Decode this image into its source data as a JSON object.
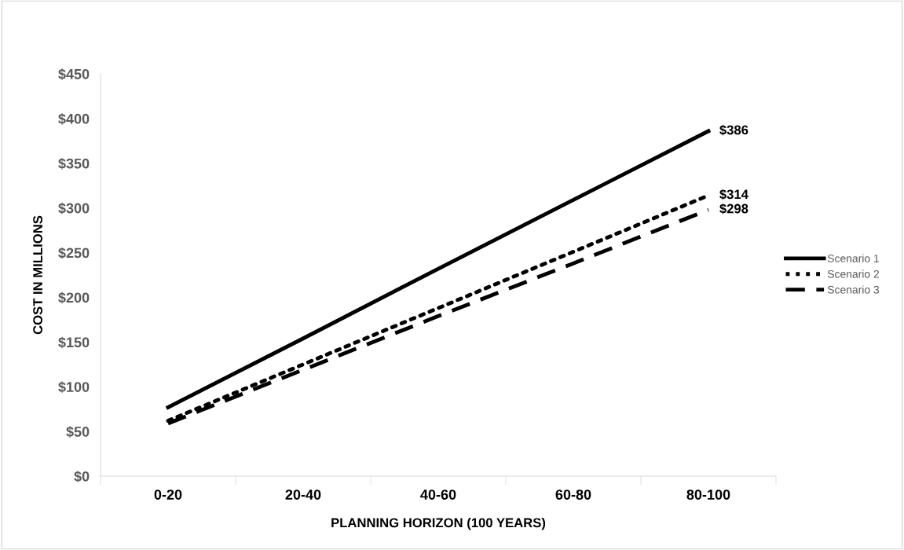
{
  "chart_data": {
    "type": "line",
    "xlabel": "PLANNING HORIZON (100 YEARS)",
    "ylabel": "COST IN MILLIONS",
    "categories": [
      "0-20",
      "20-40",
      "40-60",
      "60-80",
      "80-100"
    ],
    "series": [
      {
        "name": "Scenario 1",
        "color": "#000000",
        "line_style": "solid",
        "values": [
          77,
          154,
          232,
          309,
          386
        ],
        "value_labels": [
          null,
          null,
          null,
          null,
          "$386"
        ]
      },
      {
        "name": "Scenario 2",
        "color": "#000000",
        "line_style": "dotted",
        "values": [
          62,
          125,
          188,
          251,
          314
        ],
        "value_labels": [
          null,
          null,
          null,
          null,
          "$314"
        ]
      },
      {
        "name": "Scenario 3",
        "color": "#000000",
        "line_style": "dashed",
        "values": [
          59,
          119,
          179,
          238,
          298
        ],
        "value_labels": [
          null,
          null,
          null,
          null,
          "$298"
        ]
      }
    ],
    "ylim": [
      0,
      450
    ],
    "yticks": [
      {
        "value": 0,
        "label": "$0"
      },
      {
        "value": 50,
        "label": "$50"
      },
      {
        "value": 100,
        "label": "$100"
      },
      {
        "value": 150,
        "label": "$150"
      },
      {
        "value": 200,
        "label": "$200"
      },
      {
        "value": 250,
        "label": "$250"
      },
      {
        "value": 300,
        "label": "$300"
      },
      {
        "value": 350,
        "label": "$350"
      },
      {
        "value": 400,
        "label": "$400"
      },
      {
        "value": 450,
        "label": "$450"
      }
    ],
    "legend": "right",
    "grid": false
  }
}
